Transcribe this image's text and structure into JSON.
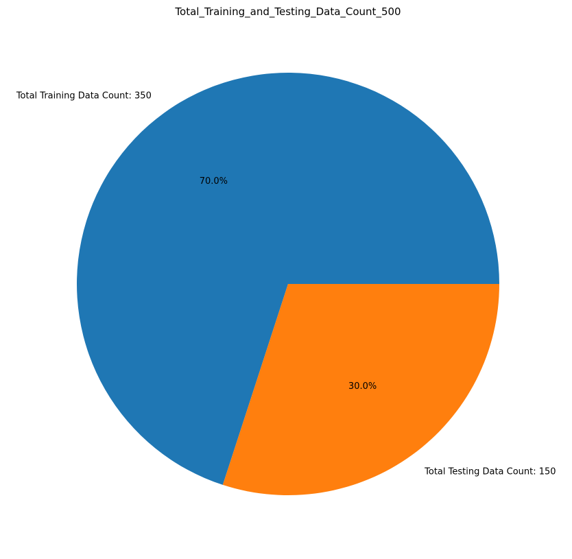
{
  "chart_data": {
    "type": "pie",
    "title": "Total_Training_and_Testing_Data_Count_500",
    "slices": [
      {
        "label": "Total Training Data Count: 350",
        "value": 350,
        "pct_label": "70.0%",
        "color": "#1f77b4"
      },
      {
        "label": "Total Testing Data Count: 150",
        "value": 150,
        "pct_label": "30.0%",
        "color": "#ff7f0e"
      }
    ]
  }
}
